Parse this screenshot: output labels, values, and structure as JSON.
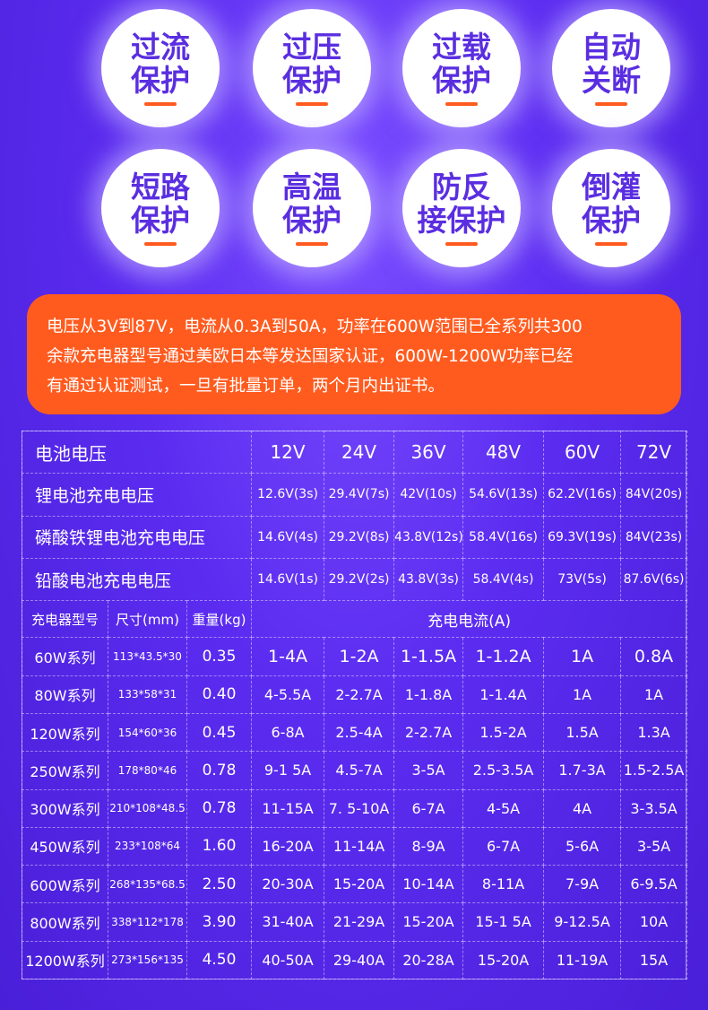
{
  "badges": [
    {
      "line1": "过流",
      "line2": "保护"
    },
    {
      "line1": "过压",
      "line2": "保护"
    },
    {
      "line1": "过载",
      "line2": "保护"
    },
    {
      "line1": "自动",
      "line2": "关断"
    },
    {
      "line1": "短路",
      "line2": "保护"
    },
    {
      "line1": "高温",
      "line2": "保护"
    },
    {
      "line1": "防反",
      "line2": "接保护"
    },
    {
      "line1": "倒灌",
      "line2": "保护"
    }
  ],
  "note": {
    "line1": "电压从3V到87V，电流从0.3A到50A，功率在600W范围已全系列共300",
    "line2": "余款充电器型号通过美欧日本等发达国家认证，600W-1200W功率已经",
    "line3": "有通过认证测试，一旦有批量订单，两个月内出证书。"
  },
  "voltage_table": {
    "header_label": "电池电压",
    "voltages": [
      "12V",
      "24V",
      "36V",
      "48V",
      "60V",
      "72V"
    ],
    "rows": [
      {
        "label": "锂电池充电电压",
        "values": [
          "12.6V(3s)",
          "29.4V(7s)",
          "42V(10s)",
          "54.6V(13s)",
          "62.2V(16s)",
          "84V(20s)"
        ]
      },
      {
        "label": "磷酸铁锂电池充电电压",
        "values": [
          "14.6V(4s)",
          "29.2V(8s)",
          "43.8V(12s)",
          "58.4V(16s)",
          "69.3V(19s)",
          "84V(23s)"
        ]
      },
      {
        "label": "铅酸电池充电电压",
        "values": [
          "14.6V(1s)",
          "29.2V(2s)",
          "43.8V(3s)",
          "58.4V(4s)",
          "73V(5s)",
          "87.6V(6s)"
        ]
      }
    ]
  },
  "model_table": {
    "headers": {
      "model": "充电器型号",
      "size": "尺寸(mm)",
      "weight": "重量(kg)",
      "current": "充电电流(A)"
    },
    "rows": [
      {
        "model": "60W系列",
        "size": "113*43.5*30",
        "weight": "0.35",
        "currents": [
          "1-4A",
          "1-2A",
          "1-1.5A",
          "1-1.2A",
          "1A",
          "0.8A"
        ]
      },
      {
        "model": "80W系列",
        "size": "133*58*31",
        "weight": "0.40",
        "currents": [
          "4-5.5A",
          "2-2.7A",
          "1-1.8A",
          "1-1.4A",
          "1A",
          "1A"
        ]
      },
      {
        "model": "120W系列",
        "size": "154*60*36",
        "weight": "0.45",
        "currents": [
          "6-8A",
          "2.5-4A",
          "2-2.7A",
          "1.5-2A",
          "1.5A",
          "1.3A"
        ]
      },
      {
        "model": "250W系列",
        "size": "178*80*46",
        "weight": "0.78",
        "currents": [
          "9-1 5A",
          "4.5-7A",
          "3-5A",
          "2.5-3.5A",
          "1.7-3A",
          "1.5-2.5A"
        ]
      },
      {
        "model": "300W系列",
        "size": "210*108*48.5",
        "weight": "0.78",
        "currents": [
          "11-15A",
          "7. 5-10A",
          "6-7A",
          "4-5A",
          "4A",
          "3-3.5A"
        ]
      },
      {
        "model": "450W系列",
        "size": "233*108*64",
        "weight": "1.60",
        "currents": [
          "16-20A",
          "11-14A",
          "8-9A",
          "6-7A",
          "5-6A",
          "3-5A"
        ]
      },
      {
        "model": "600W系列",
        "size": "268*135*68.5",
        "weight": "2.50",
        "currents": [
          "20-30A",
          "15-20A",
          "10-14A",
          "8-11A",
          "7-9A",
          "6-9.5A"
        ]
      },
      {
        "model": "800W系列",
        "size": "338*112*178",
        "weight": "3.90",
        "currents": [
          "31-40A",
          "21-29A",
          "15-20A",
          "15-1 5A",
          "9-12.5A",
          "10A"
        ]
      },
      {
        "model": "1200W系列",
        "size": "273*156*135",
        "weight": "4.50",
        "currents": [
          "40-50A",
          "29-40A",
          "20-28A",
          "15-20A",
          "11-19A",
          "15A"
        ]
      }
    ]
  }
}
